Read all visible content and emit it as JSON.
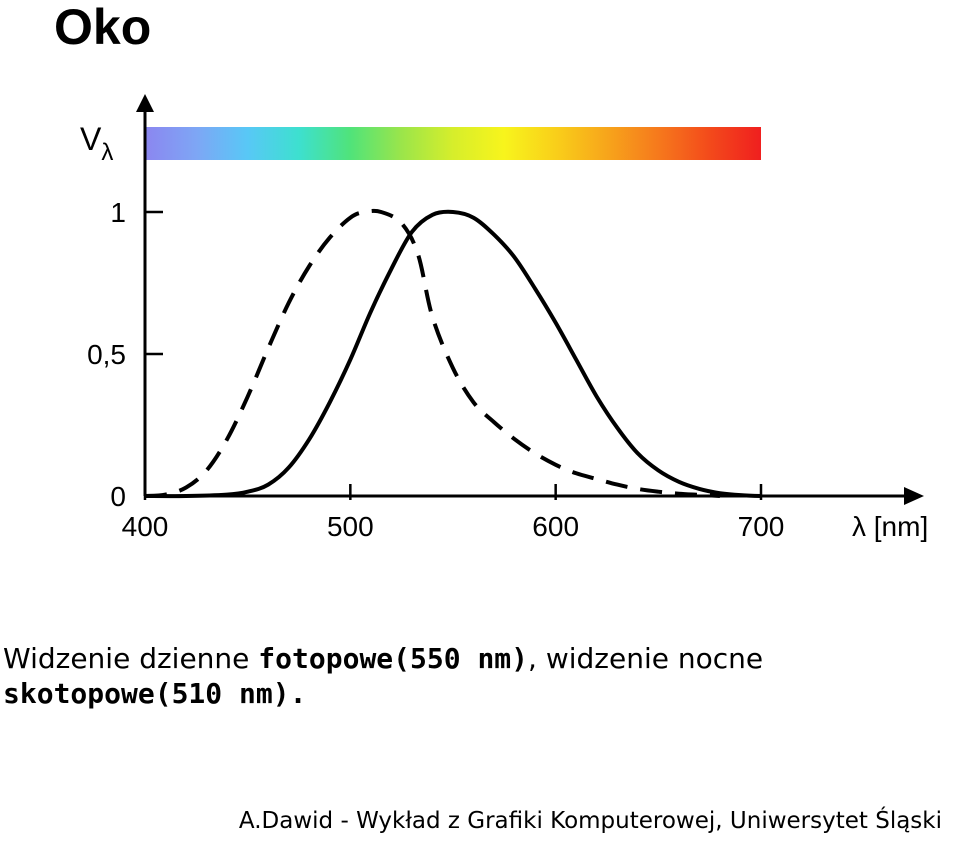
{
  "page": {
    "title": "Oko",
    "caption": {
      "part1": "Widzenie dzienne ",
      "bold1": "fotopowe(550 nm)",
      "part2": ", widzenie nocne",
      "bold2": "skotopowe(510 nm)."
    },
    "footer": "A.Dawid - Wykład z Grafiki Komputerowej, Uniwersytet Śląski"
  },
  "chart_data": {
    "type": "line",
    "ylabel_main": "V",
    "ylabel_sub": "λ",
    "xlabel": "λ [nm]",
    "x_ticks": [
      400,
      500,
      600,
      700
    ],
    "x_tick_labels": [
      "400",
      "500",
      "600",
      "700"
    ],
    "y_ticks": [
      0,
      0.5,
      1
    ],
    "y_tick_labels": [
      "0",
      "0,5",
      "1"
    ],
    "xlim": [
      400,
      700
    ],
    "ylim": [
      0,
      1
    ],
    "grid": false,
    "spectrum_bar_colors": [
      "#8b86f0",
      "#7ea6f5",
      "#58c8f6",
      "#3de0cf",
      "#50e37a",
      "#9be54a",
      "#d6ee2b",
      "#f8f41c",
      "#f9cf1a",
      "#f7a51b",
      "#f6791c",
      "#f34a1b",
      "#f01f1f"
    ],
    "series": [
      {
        "style": "solid",
        "x": [
          400,
          420,
          440,
          450,
          460,
          470,
          480,
          490,
          500,
          510,
          520,
          530,
          540,
          550,
          560,
          570,
          580,
          590,
          600,
          610,
          620,
          630,
          640,
          650,
          660,
          670,
          680,
          690,
          700
        ],
        "values": [
          0,
          0,
          0.005,
          0.015,
          0.04,
          0.1,
          0.2,
          0.33,
          0.48,
          0.65,
          0.8,
          0.93,
          0.99,
          1.0,
          0.98,
          0.92,
          0.84,
          0.73,
          0.61,
          0.48,
          0.35,
          0.24,
          0.15,
          0.09,
          0.05,
          0.025,
          0.01,
          0.003,
          0
        ]
      },
      {
        "style": "dashed",
        "x": [
          400,
          410,
          420,
          430,
          440,
          450,
          460,
          470,
          480,
          490,
          500,
          507,
          515,
          525,
          533,
          540,
          550,
          560,
          570,
          580,
          590,
          600,
          610,
          620,
          630,
          640,
          650,
          660,
          670,
          680
        ],
        "values": [
          0,
          0.005,
          0.03,
          0.09,
          0.2,
          0.35,
          0.52,
          0.68,
          0.81,
          0.91,
          0.98,
          1.0,
          1.0,
          0.96,
          0.85,
          0.63,
          0.45,
          0.33,
          0.26,
          0.2,
          0.15,
          0.11,
          0.08,
          0.06,
          0.04,
          0.025,
          0.015,
          0.008,
          0.004,
          0
        ]
      }
    ]
  }
}
